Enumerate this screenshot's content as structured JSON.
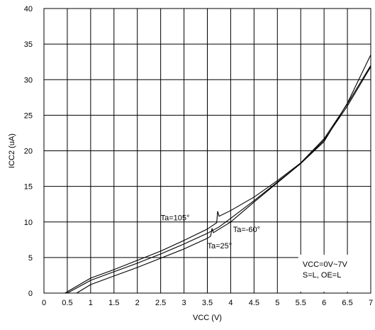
{
  "chart_data": {
    "type": "line",
    "xlabel": "VCC (V)",
    "ylabel": "ICC2 (uA)",
    "xlim": [
      0,
      7
    ],
    "ylim": [
      0,
      40
    ],
    "x_ticks": [
      "0",
      "0.5",
      "1",
      "1.5",
      "2",
      "2.5",
      "3",
      "3.5",
      "4",
      "4.5",
      "5",
      "5.5",
      "6",
      "6.5",
      "7"
    ],
    "y_ticks": [
      "0",
      "5",
      "10",
      "15",
      "20",
      "25",
      "30",
      "35",
      "40"
    ],
    "grid": true,
    "line_color": "#000000",
    "series": [
      {
        "name": "Ta=105°",
        "x": [
          0.45,
          1.0,
          1.5,
          2.0,
          2.5,
          3.0,
          3.5,
          3.7,
          3.72,
          3.75,
          4.0,
          4.5,
          5.0,
          5.5,
          6.0,
          6.5,
          7.0
        ],
        "y": [
          0,
          2.1,
          3.3,
          4.6,
          5.9,
          7.4,
          9.0,
          9.9,
          11.5,
          10.8,
          11.6,
          13.5,
          15.8,
          18.3,
          21.7,
          26.6,
          32.0
        ]
      },
      {
        "name": "Ta=-60°",
        "x": [
          0.5,
          1.0,
          1.5,
          2.0,
          2.5,
          3.0,
          3.5,
          3.75,
          4.0,
          4.5,
          5.0,
          5.5,
          6.0,
          6.5,
          7.0
        ],
        "y": [
          0,
          1.8,
          3.0,
          4.2,
          5.5,
          6.9,
          8.4,
          9.3,
          10.5,
          13.0,
          15.6,
          18.2,
          21.3,
          26.7,
          33.5
        ]
      },
      {
        "name": "Ta=25°",
        "x": [
          0.7,
          1.0,
          1.5,
          2.0,
          2.5,
          3.0,
          3.5,
          3.57,
          3.6,
          3.63,
          4.0,
          4.5,
          5.0,
          5.5,
          6.0,
          6.5,
          7.0
        ],
        "y": [
          0,
          1.2,
          2.4,
          3.6,
          4.9,
          6.2,
          7.7,
          8.0,
          9.1,
          8.5,
          10.0,
          12.8,
          15.5,
          18.2,
          21.5,
          26.3,
          31.8
        ]
      }
    ],
    "annotations": [
      {
        "text": "Ta=105°",
        "x": 2.5,
        "y": 10.2
      },
      {
        "text": "Ta=-60°",
        "x": 4.05,
        "y": 8.6
      },
      {
        "text": "Ta=25°",
        "x": 3.5,
        "y": 6.3
      }
    ],
    "condition_box": {
      "lines": [
        "VCC=0V~7V",
        "S=L, OE=L"
      ]
    }
  }
}
